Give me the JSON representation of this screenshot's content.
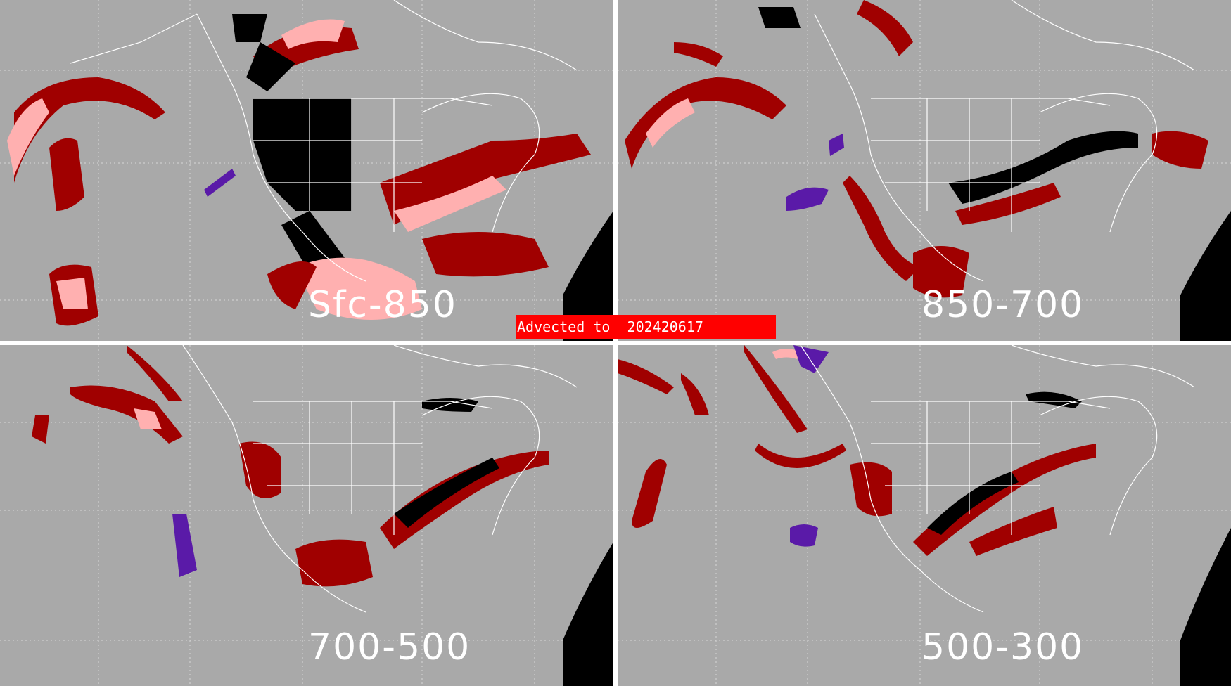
{
  "panels": [
    {
      "label": "Sfc-850"
    },
    {
      "label": "850-700"
    },
    {
      "label": "700-500"
    },
    {
      "label": "500-300"
    }
  ],
  "banner": {
    "text": "Advected to  202420617"
  },
  "colors": {
    "background": "#a9a9a9",
    "dark_red": "#a00000",
    "light_pink": "#ffb0b0",
    "black": "#000000",
    "purple": "#5a1aa8",
    "boundaries": "#ffffff"
  }
}
